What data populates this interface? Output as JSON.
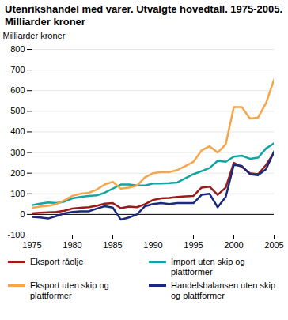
{
  "chart_data": {
    "type": "line",
    "title": "Utenrikshandel med varer. Utvalgte hovedtall. 1975-2005. Milliarder kroner",
    "y_label": "Milliarder kroner",
    "x": [
      1975,
      1976,
      1977,
      1978,
      1979,
      1980,
      1981,
      1982,
      1983,
      1984,
      1985,
      1986,
      1987,
      1988,
      1989,
      1990,
      1991,
      1992,
      1993,
      1994,
      1995,
      1996,
      1997,
      1998,
      1999,
      2000,
      2001,
      2002,
      2003,
      2004,
      2005
    ],
    "series": [
      {
        "name": "Eksport råolje",
        "color": "#9b1b1b",
        "values": [
          5,
          8,
          10,
          12,
          18,
          28,
          32,
          35,
          42,
          52,
          55,
          30,
          38,
          35,
          50,
          70,
          78,
          80,
          85,
          88,
          90,
          130,
          135,
          95,
          130,
          250,
          230,
          200,
          195,
          240,
          300
        ]
      },
      {
        "name": "Import uten skip og plattformer",
        "color": "#14a4a4",
        "values": [
          45,
          52,
          58,
          55,
          62,
          78,
          85,
          90,
          92,
          105,
          125,
          145,
          145,
          140,
          140,
          150,
          150,
          152,
          155,
          175,
          195,
          210,
          225,
          260,
          255,
          280,
          285,
          270,
          275,
          320,
          345
        ]
      },
      {
        "name": "Eksport uten skip og plattformer",
        "color": "#f5a54a",
        "values": [
          32,
          38,
          42,
          50,
          68,
          90,
          100,
          105,
          120,
          145,
          158,
          125,
          130,
          140,
          180,
          200,
          205,
          205,
          215,
          235,
          255,
          310,
          330,
          300,
          340,
          520,
          520,
          465,
          470,
          540,
          655
        ]
      },
      {
        "name": "Handelsbalansen uten skip og plattformer",
        "color": "#1b2a7a",
        "values": [
          -12,
          -15,
          -20,
          -8,
          5,
          12,
          15,
          15,
          28,
          40,
          33,
          -25,
          -15,
          0,
          40,
          50,
          55,
          50,
          55,
          55,
          55,
          95,
          100,
          35,
          85,
          240,
          235,
          195,
          190,
          220,
          305
        ]
      }
    ],
    "xlim": [
      1975,
      2005
    ],
    "xticks": [
      1975,
      1980,
      1985,
      1990,
      1995,
      2000,
      2005
    ],
    "ylim": [
      -100,
      800
    ],
    "yticks": [
      -100,
      0,
      100,
      200,
      300,
      400,
      500,
      600,
      700,
      800
    ],
    "grid": true,
    "legend": "bottom"
  }
}
